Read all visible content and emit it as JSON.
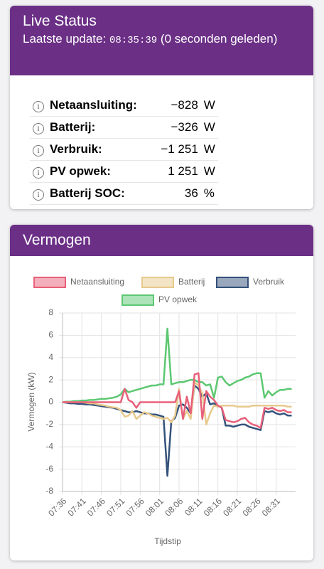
{
  "live_status": {
    "title": "Live Status",
    "update_label": "Laatste update:",
    "time": "08:35:39",
    "suffix": "(0 seconden geleden)",
    "rows": [
      {
        "label": "Netaansluiting:",
        "value": "−828",
        "unit": "W"
      },
      {
        "label": "Batterij:",
        "value": "−326",
        "unit": "W"
      },
      {
        "label": "Verbruik:",
        "value": "−1 251",
        "unit": "W"
      },
      {
        "label": "PV opwek:",
        "value": "1 251",
        "unit": "W"
      },
      {
        "label": "Batterij SOC:",
        "value": "36",
        "unit": "%"
      }
    ]
  },
  "chart_data": {
    "type": "line",
    "title": "Vermogen",
    "x_label": "Tijdstip",
    "y_label": "Vermogen (kW)",
    "x": [
      "07:36",
      "07:37",
      "07:38",
      "07:39",
      "07:40",
      "07:41",
      "07:42",
      "07:43",
      "07:44",
      "07:45",
      "07:46",
      "07:47",
      "07:48",
      "07:49",
      "07:50",
      "07:51",
      "07:52",
      "07:53",
      "07:54",
      "07:55",
      "07:56",
      "07:57",
      "07:58",
      "07:59",
      "08:00",
      "08:01",
      "08:02",
      "08:03",
      "08:04",
      "08:05",
      "08:06",
      "08:07",
      "08:08",
      "08:09",
      "08:10",
      "08:11",
      "08:12",
      "08:13",
      "08:14",
      "08:15",
      "08:16",
      "08:17",
      "08:18",
      "08:19",
      "08:20",
      "08:21",
      "08:22",
      "08:23",
      "08:24",
      "08:25",
      "08:26",
      "08:27",
      "08:28",
      "08:29",
      "08:30",
      "08:31",
      "08:32",
      "08:33",
      "08:34",
      "08:35"
    ],
    "series": [
      {
        "name": "Netaansluiting",
        "color": "#e8607a",
        "values": [
          0,
          0,
          0,
          0,
          0,
          0,
          0,
          0,
          0,
          0,
          0,
          0,
          0,
          0,
          0,
          0,
          1.2,
          0.2,
          0,
          -0.5,
          0,
          0,
          0,
          0,
          0,
          0,
          0,
          0,
          0,
          0,
          1.0,
          -1.5,
          0.5,
          -1.0,
          2.5,
          2.6,
          -1.5,
          1.0,
          0.5,
          0.2,
          -0.3,
          -0.5,
          -1.6,
          -1.7,
          -1.8,
          -1.7,
          -1.5,
          -1.4,
          -1.8,
          -2.0,
          -2.1,
          -2.3,
          -0.5,
          -0.6,
          -0.5,
          -0.7,
          -0.8,
          -0.7,
          -0.9,
          -0.9
        ]
      },
      {
        "name": "Batterij",
        "color": "#e6c98c",
        "values": [
          0,
          0,
          0,
          0,
          0,
          0,
          -0.05,
          -0.1,
          -0.1,
          -0.2,
          -0.25,
          -0.3,
          -0.4,
          -0.45,
          -0.5,
          -0.7,
          -1.3,
          -1.2,
          -0.8,
          -1.5,
          -1.2,
          -0.9,
          -1.0,
          -1.2,
          -1.3,
          -1.4,
          -1.5,
          -1.4,
          -1.8,
          -1.2,
          1.2,
          -1.5,
          -0.8,
          -1.5,
          1.8,
          1.5,
          0.8,
          -2.0,
          -1.0,
          -0.3,
          -0.4,
          -0.3,
          -0.3,
          -0.3,
          -0.3,
          -0.4,
          -0.4,
          -0.4,
          -0.4,
          -0.3,
          -0.3,
          -0.3,
          -0.3,
          -0.3,
          -0.3,
          -0.3,
          -0.3,
          -0.3,
          -0.4,
          -0.4
        ]
      },
      {
        "name": "Verbruik",
        "color": "#34527a",
        "values": [
          0,
          -0.05,
          -0.1,
          -0.1,
          -0.15,
          -0.15,
          -0.2,
          -0.2,
          -0.25,
          -0.3,
          -0.35,
          -0.4,
          -0.45,
          -0.5,
          -0.6,
          -0.7,
          -0.8,
          -0.9,
          -0.9,
          -0.8,
          -0.9,
          -1.0,
          -1.0,
          -1.1,
          -1.1,
          -1.2,
          -1.3,
          -6.6,
          -1.7,
          -1.4,
          -0.3,
          -0.2,
          -0.5,
          -1.0,
          1.5,
          1.2,
          0.5,
          0.8,
          -0.2,
          -0.1,
          -0.3,
          -0.5,
          -2.1,
          -2.1,
          -2.2,
          -2.1,
          -2.0,
          -2.0,
          -2.2,
          -2.3,
          -2.4,
          -2.5,
          -0.8,
          -0.9,
          -0.8,
          -1.0,
          -1.1,
          -1.0,
          -1.2,
          -1.2
        ]
      },
      {
        "name": "PV opwek",
        "color": "#5cc872",
        "values": [
          0,
          0.05,
          0.05,
          0.1,
          0.1,
          0.15,
          0.15,
          0.2,
          0.2,
          0.25,
          0.3,
          0.3,
          0.35,
          0.4,
          0.5,
          0.7,
          1.2,
          0.9,
          1.0,
          1.1,
          1.2,
          1.3,
          1.4,
          1.5,
          1.5,
          1.6,
          1.6,
          6.6,
          1.6,
          1.7,
          1.8,
          1.8,
          1.9,
          2.0,
          2.0,
          1.8,
          1.8,
          1.5,
          1.6,
          0.4,
          2.2,
          2.3,
          1.8,
          1.5,
          1.7,
          1.9,
          2.0,
          2.2,
          2.3,
          2.5,
          2.6,
          2.6,
          0.4,
          1.0,
          0.6,
          0.9,
          1.1,
          1.1,
          1.2,
          1.2
        ]
      }
    ],
    "xlim": [
      "07:36",
      "08:36"
    ],
    "xticks": [
      "07:36",
      "07:41",
      "07:46",
      "07:51",
      "07:56",
      "08:01",
      "08:06",
      "08:11",
      "08:16",
      "08:21",
      "08:26",
      "08:31"
    ],
    "ylim": [
      -8,
      8
    ],
    "yticks": [
      -8,
      -6,
      -4,
      -2,
      0,
      2,
      4,
      6,
      8
    ],
    "grid": true
  }
}
